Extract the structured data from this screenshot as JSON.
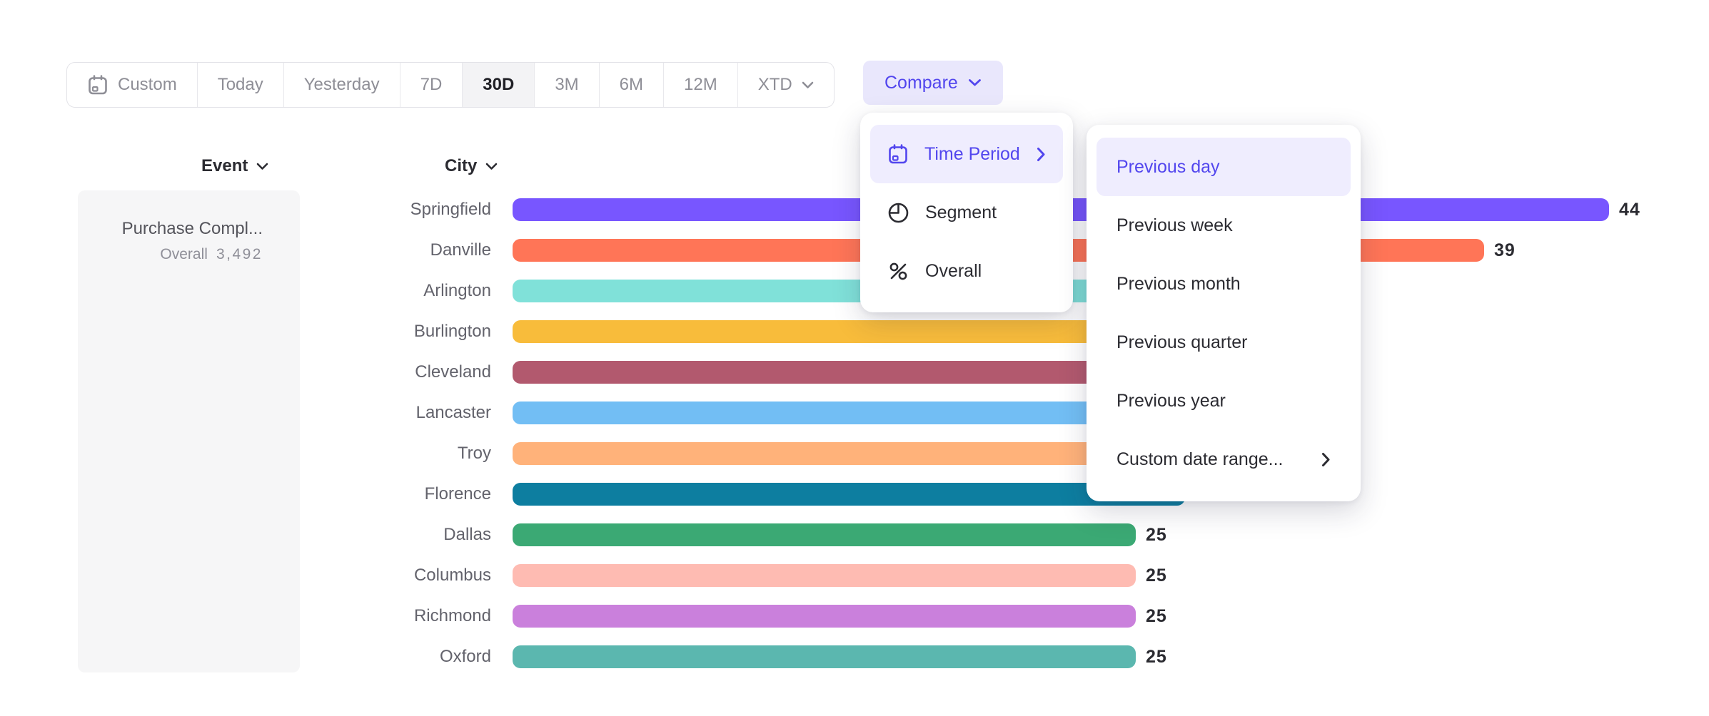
{
  "toolbar": {
    "date_ranges": [
      {
        "label": "Custom",
        "icon": "calendar",
        "selected": false
      },
      {
        "label": "Today",
        "selected": false
      },
      {
        "label": "Yesterday",
        "selected": false
      },
      {
        "label": "7D",
        "selected": false
      },
      {
        "label": "30D",
        "selected": true
      },
      {
        "label": "3M",
        "selected": false
      },
      {
        "label": "6M",
        "selected": false
      },
      {
        "label": "12M",
        "selected": false
      },
      {
        "label": "XTD",
        "chevron": true,
        "selected": false
      }
    ],
    "compare_label": "Compare"
  },
  "compare_menu": {
    "items": [
      {
        "label": "Time Period",
        "icon": "calendar",
        "chevron": true,
        "active": true
      },
      {
        "label": "Segment",
        "icon": "segment",
        "active": false
      },
      {
        "label": "Overall",
        "icon": "percent",
        "active": false
      }
    ]
  },
  "time_period_submenu": {
    "items": [
      {
        "label": "Previous day",
        "active": true
      },
      {
        "label": "Previous week",
        "active": false
      },
      {
        "label": "Previous month",
        "active": false
      },
      {
        "label": "Previous quarter",
        "active": false
      },
      {
        "label": "Previous year",
        "active": false
      },
      {
        "label": "Custom date range...",
        "chevron": true,
        "active": false
      }
    ]
  },
  "event_panel": {
    "header": "Event",
    "event_name": "Purchase Compl...",
    "overall_label": "Overall",
    "overall_value": "3,492"
  },
  "chart": {
    "column_header": "City"
  },
  "chart_data": {
    "type": "bar",
    "orientation": "horizontal",
    "title": "",
    "xlabel": "",
    "ylabel": "City",
    "categories": [
      "Springfield",
      "Danville",
      "Arlington",
      "Burlington",
      "Cleveland",
      "Lancaster",
      "Troy",
      "Florence",
      "Dallas",
      "Columbus",
      "Richmond",
      "Oxford"
    ],
    "values": [
      44,
      39,
      null,
      null,
      null,
      null,
      null,
      null,
      25,
      25,
      25,
      25
    ],
    "value_labels_visible": [
      "44",
      "39",
      "",
      "",
      "",
      "",
      "",
      "",
      "25",
      "25",
      "25",
      "25"
    ],
    "bar_colors": [
      "#7856FF",
      "#FF7557",
      "#80E1D9",
      "#F8BC3B",
      "#B2596E",
      "#72BEF4",
      "#FFB27A",
      "#0D7EA0",
      "#3BA974",
      "#FEBBB2",
      "#CA80DC",
      "#5BB7AF"
    ],
    "hidden_values_note": "Bars 3-8 end behind the open Compare menus; their value labels are not visible in the screenshot",
    "render_units": [
      44,
      39,
      32,
      31,
      30,
      29,
      28,
      27,
      25,
      25,
      25,
      25
    ],
    "legend_position": "none",
    "grid": false
  },
  "colors": {
    "accent": "#5246EE",
    "accent_soft_bg": "#E9E7FC",
    "menu_item_active_bg": "#EFEDFE",
    "toolbar_text": "#8E8E96",
    "toolbar_selected_text": "#1F1F25",
    "toolbar_selected_bg": "#F3F3F5",
    "menu_text": "#2B2B31",
    "bar_label_text": "#63636C",
    "value_text": "#2B2B31",
    "event_panel_bg": "#F6F6F7"
  }
}
